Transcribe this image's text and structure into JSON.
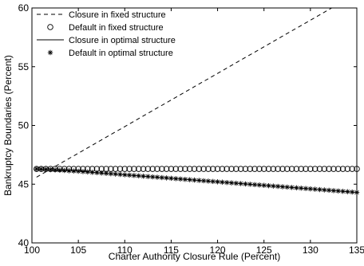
{
  "chart_data": {
    "type": "line",
    "title": "",
    "xlabel": "Charter Authority Closure Rule (Percent)",
    "ylabel": "Bankruptcy Boundaries (Percent)",
    "xlim": [
      100,
      135
    ],
    "ylim": [
      40,
      60
    ],
    "xticks": [
      100,
      105,
      110,
      115,
      120,
      125,
      130,
      135
    ],
    "yticks": [
      40,
      45,
      50,
      55,
      60
    ],
    "grid": false,
    "legend_position": "top-left",
    "series": [
      {
        "name": "Closure in fixed structure",
        "style": "dashed-line",
        "color": "#000000",
        "x": [
          100.5,
          132.3
        ],
        "y": [
          45.6,
          60.0
        ]
      },
      {
        "name": "Default in fixed structure",
        "style": "circle-markers",
        "color": "#000000",
        "x": [
          100.5,
          101.0,
          101.5,
          102.0,
          102.5,
          103.0,
          103.5,
          104.0,
          104.5,
          105.0,
          105.5,
          106.0,
          106.5,
          107.0,
          107.5,
          108.0,
          108.5,
          109.0,
          109.5,
          110.0,
          110.5,
          111.0,
          111.5,
          112.0,
          112.5,
          113.0,
          113.5,
          114.0,
          114.5,
          115.0,
          115.5,
          116.0,
          116.5,
          117.0,
          117.5,
          118.0,
          118.5,
          119.0,
          119.5,
          120.0,
          120.5,
          121.0,
          121.5,
          122.0,
          122.5,
          123.0,
          123.5,
          124.0,
          124.5,
          125.0,
          125.5,
          126.0,
          126.5,
          127.0,
          127.5,
          128.0,
          128.5,
          129.0,
          129.5,
          130.0,
          130.5,
          131.0,
          131.5,
          132.0,
          132.5,
          133.0,
          133.5,
          134.0,
          134.5,
          135.0
        ],
        "y_constant": 46.3
      },
      {
        "name": "Closure in optimal structure",
        "style": "solid-line",
        "color": "#000000",
        "x": [
          100.5,
          105,
          110,
          115,
          120,
          125,
          130,
          135
        ],
        "y": [
          46.3,
          46.1,
          45.8,
          45.5,
          45.2,
          44.9,
          44.6,
          44.3
        ]
      },
      {
        "name": "Default in optimal structure",
        "style": "star-markers",
        "color": "#000000",
        "x": [
          100.5,
          101.0,
          101.5,
          102.0,
          102.5,
          103.0,
          103.5,
          104.0,
          104.5,
          105.0,
          105.5,
          106.0,
          106.5,
          107.0,
          107.5,
          108.0,
          108.5,
          109.0,
          109.5,
          110.0,
          110.5,
          111.0,
          111.5,
          112.0,
          112.5,
          113.0,
          113.5,
          114.0,
          114.5,
          115.0,
          115.5,
          116.0,
          116.5,
          117.0,
          117.5,
          118.0,
          118.5,
          119.0,
          119.5,
          120.0,
          120.5,
          121.0,
          121.5,
          122.0,
          122.5,
          123.0,
          123.5,
          124.0,
          124.5,
          125.0,
          125.5,
          126.0,
          126.5,
          127.0,
          127.5,
          128.0,
          128.5,
          129.0,
          129.5,
          130.0,
          130.5,
          131.0,
          131.5,
          132.0,
          132.5,
          133.0,
          133.5,
          134.0,
          134.5,
          135.0
        ],
        "y_from": "Closure in optimal structure"
      }
    ]
  }
}
